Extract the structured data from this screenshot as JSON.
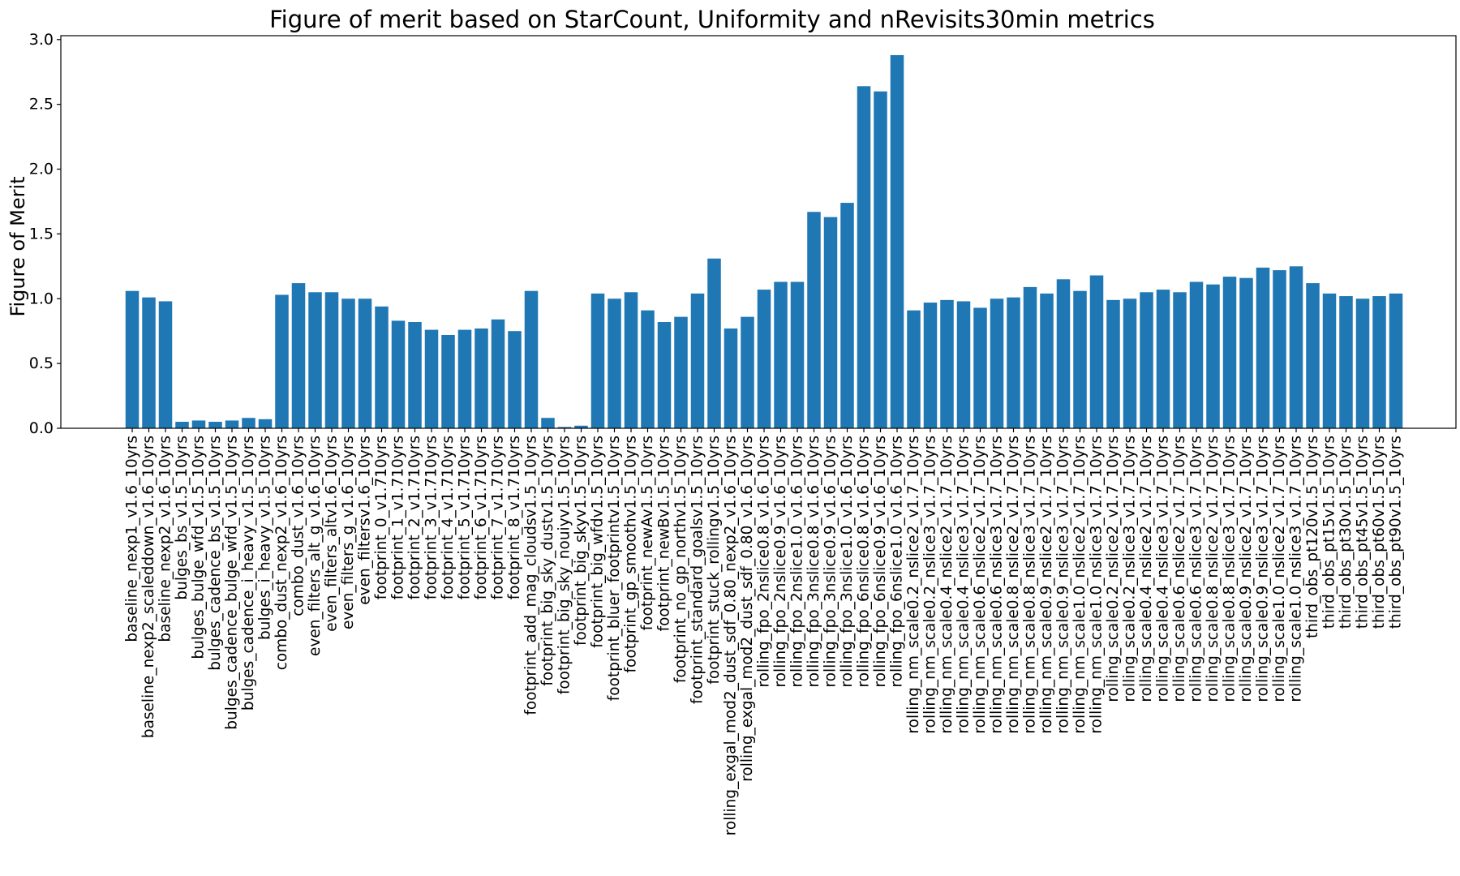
{
  "chart_data": {
    "type": "bar",
    "title": "Figure of merit based on StarCount, Uniformity and nRevisits30min metrics",
    "xlabel": "",
    "ylabel": "Figure of Merit",
    "ylim": [
      0,
      3.03
    ],
    "yticks": [
      "0.0",
      "0.5",
      "1.0",
      "1.5",
      "2.0",
      "2.5",
      "3.0"
    ],
    "bar_color": "#1f77b4",
    "grid": false,
    "legend": "none",
    "categories": [
      "baseline_nexp1_v1.6_10yrs",
      "baseline_nexp2_scaleddown_v1.6_10yrs",
      "baseline_nexp2_v1.6_10yrs",
      "bulges_bs_v1.5_10yrs",
      "bulges_bulge_wfd_v1.5_10yrs",
      "bulges_cadence_bs_v1.5_10yrs",
      "bulges_cadence_bulge_wfd_v1.5_10yrs",
      "bulges_cadence_i_heavy_v1.5_10yrs",
      "bulges_i_heavy_v1.5_10yrs",
      "combo_dust_nexp2_v1.6_10yrs",
      "combo_dust_v1.6_10yrs",
      "even_filters_alt_g_v1.6_10yrs",
      "even_filters_altv1.6_10yrs",
      "even_filters_g_v1.6_10yrs",
      "even_filtersv1.6_10yrs",
      "footprint_0_v1.710yrs",
      "footprint_1_v1.710yrs",
      "footprint_2_v1.710yrs",
      "footprint_3_v1.710yrs",
      "footprint_4_v1.710yrs",
      "footprint_5_v1.710yrs",
      "footprint_6_v1.710yrs",
      "footprint_7_v1.710yrs",
      "footprint_8_v1.710yrs",
      "footprint_add_mag_cloudsv1.5_10yrs",
      "footprint_big_sky_dustv1.5_10yrs",
      "footprint_big_sky_nouiyv1.5_10yrs",
      "footprint_big_skyv1.5_10yrs",
      "footprint_big_wfdv1.5_10yrs",
      "footprint_bluer_footprintv1.5_10yrs",
      "footprint_gp_smoothv1.5_10yrs",
      "footprint_newAv1.5_10yrs",
      "footprint_newBv1.5_10yrs",
      "footprint_no_gp_northv1.5_10yrs",
      "footprint_standard_goalsv1.5_10yrs",
      "footprint_stuck_rollingv1.5_10yrs",
      "rolling_exgal_mod2_dust_sdf_0.80_nexp2_v1.6_10yrs",
      "rolling_exgal_mod2_dust_sdf_0.80_v1.6_10yrs",
      "rolling_fpo_2nslice0.8_v1.6_10yrs",
      "rolling_fpo_2nslice0.9_v1.6_10yrs",
      "rolling_fpo_2nslice1.0_v1.6_10yrs",
      "rolling_fpo_3nslice0.8_v1.6_10yrs",
      "rolling_fpo_3nslice0.9_v1.6_10yrs",
      "rolling_fpo_3nslice1.0_v1.6_10yrs",
      "rolling_fpo_6nslice0.8_v1.6_10yrs",
      "rolling_fpo_6nslice0.9_v1.6_10yrs",
      "rolling_fpo_6nslice1.0_v1.6_10yrs",
      "rolling_nm_scale0.2_nslice2_v1.7_10yrs",
      "rolling_nm_scale0.2_nslice3_v1.7_10yrs",
      "rolling_nm_scale0.4_nslice2_v1.7_10yrs",
      "rolling_nm_scale0.4_nslice3_v1.7_10yrs",
      "rolling_nm_scale0.6_nslice2_v1.7_10yrs",
      "rolling_nm_scale0.6_nslice3_v1.7_10yrs",
      "rolling_nm_scale0.8_nslice2_v1.7_10yrs",
      "rolling_nm_scale0.8_nslice3_v1.7_10yrs",
      "rolling_nm_scale0.9_nslice2_v1.7_10yrs",
      "rolling_nm_scale0.9_nslice3_v1.7_10yrs",
      "rolling_nm_scale1.0_nslice2_v1.7_10yrs",
      "rolling_nm_scale1.0_nslice3_v1.7_10yrs",
      "rolling_scale0.2_nslice2_v1.7_10yrs",
      "rolling_scale0.2_nslice3_v1.7_10yrs",
      "rolling_scale0.4_nslice2_v1.7_10yrs",
      "rolling_scale0.4_nslice3_v1.7_10yrs",
      "rolling_scale0.6_nslice2_v1.7_10yrs",
      "rolling_scale0.6_nslice3_v1.7_10yrs",
      "rolling_scale0.8_nslice2_v1.7_10yrs",
      "rolling_scale0.8_nslice3_v1.7_10yrs",
      "rolling_scale0.9_nslice2_v1.7_10yrs",
      "rolling_scale0.9_nslice3_v1.7_10yrs",
      "rolling_scale1.0_nslice2_v1.7_10yrs",
      "rolling_scale1.0_nslice3_v1.7_10yrs",
      "third_obs_pt120v1.5_10yrs",
      "third_obs_pt15v1.5_10yrs",
      "third_obs_pt30v1.5_10yrs",
      "third_obs_pt45v1.5_10yrs",
      "third_obs_pt60v1.5_10yrs",
      "third_obs_pt90v1.5_10yrs"
    ],
    "values": [
      1.06,
      1.01,
      0.98,
      0.05,
      0.06,
      0.05,
      0.06,
      0.08,
      0.07,
      1.03,
      1.12,
      1.05,
      1.05,
      1.0,
      1.0,
      0.94,
      0.83,
      0.82,
      0.76,
      0.72,
      0.76,
      0.77,
      0.84,
      0.75,
      1.06,
      0.08,
      0.01,
      0.02,
      1.04,
      1.0,
      1.05,
      0.91,
      0.82,
      0.86,
      1.04,
      1.31,
      0.77,
      0.86,
      1.07,
      1.13,
      1.13,
      1.67,
      1.63,
      1.74,
      2.64,
      2.6,
      2.88,
      0.91,
      0.97,
      0.99,
      0.98,
      0.93,
      1.0,
      1.01,
      1.09,
      1.04,
      1.15,
      1.06,
      1.18,
      0.99,
      1.0,
      1.05,
      1.07,
      1.05,
      1.13,
      1.11,
      1.17,
      1.16,
      1.24,
      1.22,
      1.25,
      1.12,
      1.04,
      1.02,
      1.0,
      1.02,
      1.04
    ]
  }
}
